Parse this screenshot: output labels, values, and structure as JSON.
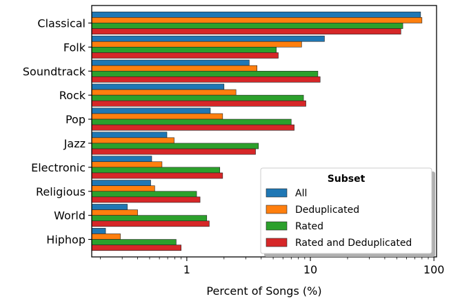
{
  "chart_data": {
    "type": "bar",
    "orientation": "horizontal",
    "xscale": "log",
    "xlim": [
      0.17,
      105
    ],
    "xticks": [
      1,
      10,
      100
    ],
    "xticklabels": [
      "1",
      "10",
      "100"
    ],
    "xlabel": "Percent of Songs (%)",
    "ylabel": "",
    "title": "",
    "categories": [
      "Classical",
      "Folk",
      "Soundtrack",
      "Rock",
      "Pop",
      "Jazz",
      "Electronic",
      "Religious",
      "World",
      "Hiphop"
    ],
    "series": [
      {
        "name": "All",
        "color": "#1f77b4",
        "values": [
          78,
          13,
          3.2,
          2.0,
          1.55,
          0.69,
          0.52,
          0.51,
          0.33,
          0.22
        ]
      },
      {
        "name": "Deduplicated",
        "color": "#ff7f0e",
        "values": [
          80,
          8.5,
          3.7,
          2.5,
          1.95,
          0.79,
          0.63,
          0.55,
          0.4,
          0.29
        ]
      },
      {
        "name": "Rated",
        "color": "#2ca02c",
        "values": [
          56,
          5.3,
          11.5,
          8.8,
          7.0,
          3.8,
          1.85,
          1.2,
          1.45,
          0.82
        ]
      },
      {
        "name": "Rated and Deduplicated",
        "color": "#d62728",
        "values": [
          54,
          5.5,
          12.0,
          9.2,
          7.4,
          3.6,
          1.95,
          1.28,
          1.52,
          0.9
        ]
      }
    ],
    "legend": {
      "title": "Subset",
      "placement": "lower-right",
      "shadow": true
    },
    "grid": false
  }
}
